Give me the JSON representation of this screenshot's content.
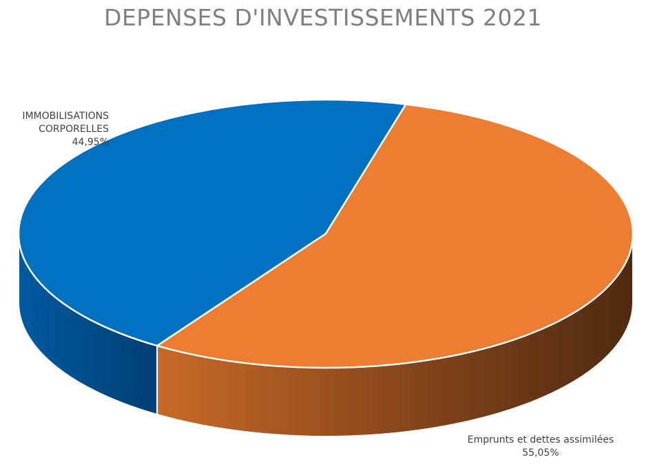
{
  "chart_data": {
    "type": "pie",
    "title": "DEPENSES D'INVESTISSEMENTS 2021",
    "three_d": true,
    "slices": [
      {
        "label_lines": [
          "IMMOBILISATIONS",
          "CORPORELLES"
        ],
        "value": 44.95,
        "value_label": "44,95%",
        "color": "#0070c0",
        "side_color": "#004f8c"
      },
      {
        "label_lines": [
          "Emprunts et dettes assimilées"
        ],
        "value": 55.05,
        "value_label": "55,05%",
        "color": "#ed7d31",
        "side_color": "#8a4519"
      }
    ],
    "legend": "none"
  }
}
